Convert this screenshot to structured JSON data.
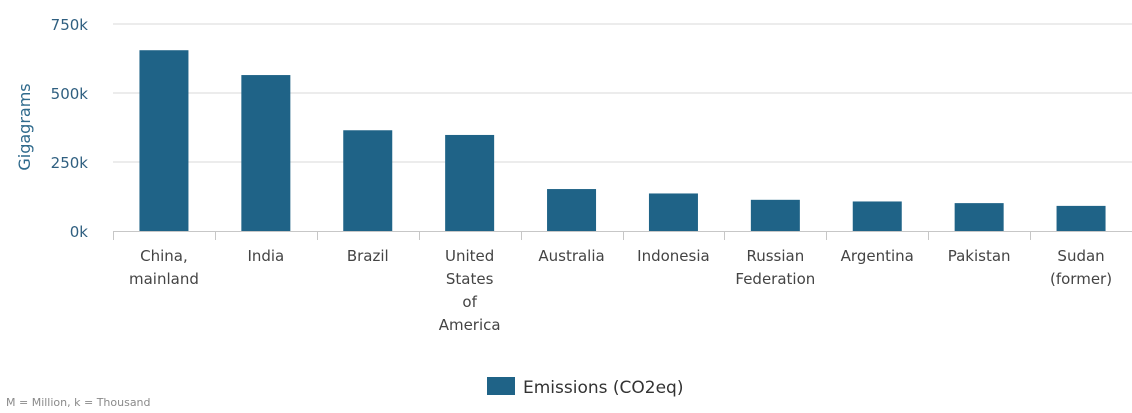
{
  "chart_data": {
    "type": "bar",
    "categories": [
      "China, mainland",
      "India",
      "Brazil",
      "United States of America",
      "Australia",
      "Indonesia",
      "Russian Federation",
      "Argentina",
      "Pakistan",
      "Sudan (former)"
    ],
    "category_lines": [
      [
        "China,",
        "mainland"
      ],
      [
        "India"
      ],
      [
        "Brazil"
      ],
      [
        "United",
        "States",
        "of",
        "America"
      ],
      [
        "Australia"
      ],
      [
        "Indonesia"
      ],
      [
        "Russian",
        "Federation"
      ],
      [
        "Argentina"
      ],
      [
        "Pakistan"
      ],
      [
        "Sudan",
        "(former)"
      ]
    ],
    "series": [
      {
        "name": "Emissions (CO2eq)",
        "color": "#1f6387",
        "values": [
          655000,
          565000,
          365000,
          348000,
          152000,
          136000,
          113000,
          107000,
          101000,
          91000
        ]
      }
    ],
    "ylabel": "Gigagrams",
    "ylim": [
      0,
      750000
    ],
    "yticks": [
      0,
      250000,
      500000,
      750000
    ],
    "ytick_labels": [
      "0k",
      "250k",
      "500k",
      "750k"
    ],
    "grid": true,
    "legend_position": "bottom-center"
  },
  "footnote": "M = Million, k = Thousand",
  "colors": {
    "bar": "#1f6387",
    "gridline": "#d8d8d8",
    "axis_label": "#2f6a8c"
  }
}
